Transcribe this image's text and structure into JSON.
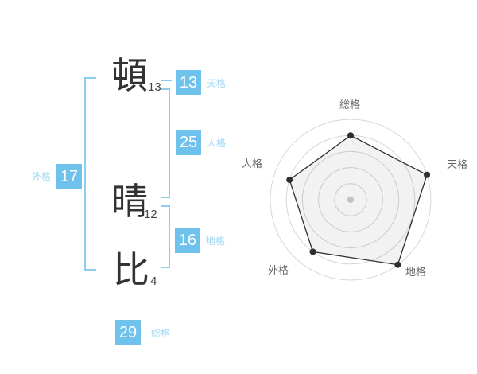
{
  "name_analysis": {
    "characters": [
      {
        "glyph": "頓",
        "strokes": "13"
      },
      {
        "glyph": "晴",
        "strokes": "12"
      },
      {
        "glyph": "比",
        "strokes": "4"
      }
    ],
    "results": {
      "tenkaku": {
        "value": "13",
        "label": "天格"
      },
      "jinkaku": {
        "value": "25",
        "label": "人格"
      },
      "chikaku": {
        "value": "16",
        "label": "地格"
      },
      "gaikaku": {
        "value": "17",
        "label": "外格"
      },
      "soukaku": {
        "value": "29",
        "label": "総格"
      }
    }
  },
  "colors": {
    "accent_box": "#6fc2eb",
    "accent_bracket": "#8ccef1",
    "accent_label": "#9ed8f5",
    "chart_line": "#2f2f2f",
    "chart_grid": "#d6d6d6",
    "chart_fill": "rgba(0,0,0,0.05)",
    "chart_center_dot": "#c2c2c2",
    "axis_label_gray": "#666666"
  },
  "chart_data": {
    "type": "radar",
    "categories": [
      "総格",
      "天格",
      "地格",
      "外格",
      "人格"
    ],
    "values": [
      4,
      5,
      5,
      4,
      4
    ],
    "max": 5,
    "rings": 5,
    "grid": "circular",
    "legend": "none",
    "title": ""
  }
}
